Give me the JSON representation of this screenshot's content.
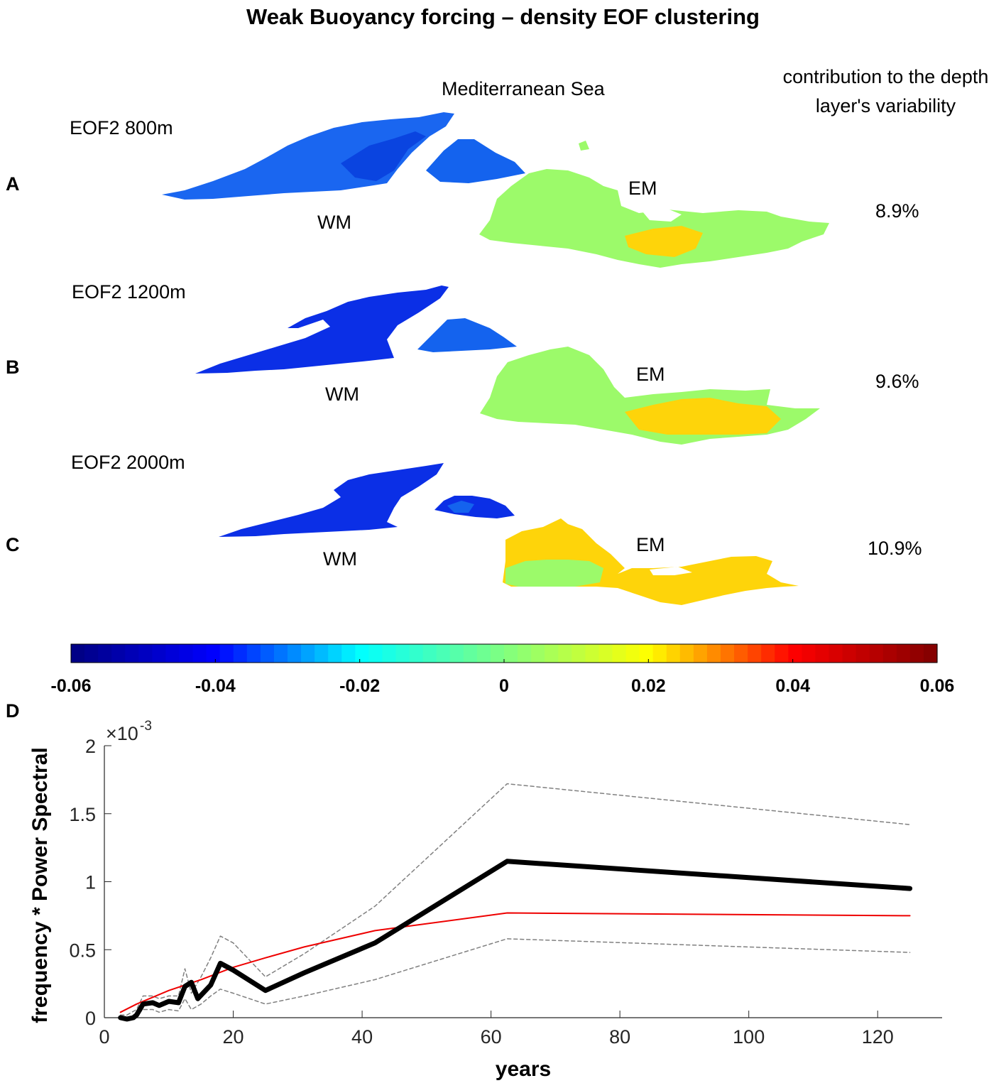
{
  "title": "Weak Buoyancy forcing – density EOF clustering",
  "sea_label": "Mediterranean Sea",
  "contribution_header": "contribution to the depth layer's variability",
  "panels": [
    {
      "letter": "A",
      "eof_label": "EOF2 800m",
      "west_label": "WM",
      "east_label": "EM",
      "contribution": "8.9%"
    },
    {
      "letter": "B",
      "eof_label": "EOF2 1200m",
      "west_label": "WM",
      "east_label": "EM",
      "contribution": "9.6%"
    },
    {
      "letter": "C",
      "eof_label": "EOF2 2000m",
      "west_label": "WM",
      "east_label": "EM",
      "contribution": "10.9%"
    }
  ],
  "map_colors": {
    "west_800": "#1a66f0",
    "west_800_dark": "#0a44e0",
    "west_deep": "#0b2fe6",
    "tyrr": "#1463ee",
    "east_green": "#9cfa6a",
    "east_yellow": "#fed40a",
    "outline": "#0a2fd8"
  },
  "colorbar": {
    "min": -0.06,
    "max": 0.06,
    "tick_labels": [
      "-0.06",
      "-0.04",
      "-0.02",
      "0",
      "0.02",
      "0.04",
      "0.06"
    ],
    "stops": [
      "#000080",
      "#0000ff",
      "#00ffff",
      "#80ff80",
      "#ffff00",
      "#ff0000",
      "#800000"
    ]
  },
  "chart_letter": "D",
  "chart_data": {
    "type": "line",
    "xlabel": "years",
    "ylabel": "frequency * Power Spectral",
    "exponent_label": "×10",
    "exponent_power": "-3",
    "xlim": [
      0,
      130
    ],
    "ylim": [
      0,
      2
    ],
    "x_ticks": [
      0,
      20,
      40,
      60,
      80,
      100,
      120
    ],
    "x_tick_labels": [
      "0",
      "20",
      "40",
      "60",
      "80",
      "100",
      "120"
    ],
    "y_ticks": [
      0,
      0.5,
      1,
      1.5,
      2
    ],
    "y_tick_labels": [
      "0",
      "0.5",
      "1",
      "1.5",
      "2"
    ],
    "series": [
      {
        "name": "upper confidence",
        "color": "#808080",
        "dash": true,
        "width": 1.5,
        "x": [
          2.5,
          3.5,
          5,
          6,
          7.5,
          8.5,
          10,
          11.5,
          12.5,
          13.5,
          15,
          16.5,
          18,
          20,
          25,
          31,
          42,
          62.5,
          125
        ],
        "y": [
          0.02,
          0.02,
          0.06,
          0.16,
          0.16,
          0.14,
          0.16,
          0.16,
          0.36,
          0.18,
          0.3,
          0.44,
          0.6,
          0.55,
          0.3,
          0.47,
          0.82,
          1.72,
          1.42
        ]
      },
      {
        "name": "lower confidence",
        "color": "#808080",
        "dash": true,
        "width": 1.5,
        "x": [
          2.5,
          3.5,
          5,
          6,
          7.5,
          8.5,
          10,
          11.5,
          12.5,
          13.5,
          15,
          16.5,
          18,
          20,
          25,
          31,
          42,
          62.5,
          125
        ],
        "y": [
          0.0,
          0.0,
          0.02,
          0.06,
          0.06,
          0.04,
          0.06,
          0.05,
          0.14,
          0.06,
          0.1,
          0.16,
          0.21,
          0.18,
          0.1,
          0.16,
          0.28,
          0.58,
          0.48
        ]
      },
      {
        "name": "red noise",
        "color": "#ee0000",
        "dash": false,
        "width": 2,
        "x": [
          2.5,
          5,
          10,
          15,
          20,
          25,
          31,
          42,
          62.5,
          125
        ],
        "y": [
          0.04,
          0.1,
          0.2,
          0.28,
          0.37,
          0.44,
          0.52,
          0.64,
          0.77,
          0.75
        ]
      },
      {
        "name": "spectrum",
        "color": "#000000",
        "dash": false,
        "width": 7,
        "x": [
          2.5,
          3.5,
          4.5,
          5,
          6,
          7.5,
          8.5,
          10,
          11.5,
          12.5,
          13.5,
          14.5,
          16.5,
          18,
          20,
          25,
          31,
          42,
          62.5,
          125
        ],
        "y": [
          0.0,
          -0.01,
          0.0,
          0.02,
          0.1,
          0.11,
          0.09,
          0.12,
          0.11,
          0.23,
          0.26,
          0.14,
          0.24,
          0.4,
          0.35,
          0.2,
          0.33,
          0.55,
          1.15,
          0.95
        ]
      }
    ]
  }
}
